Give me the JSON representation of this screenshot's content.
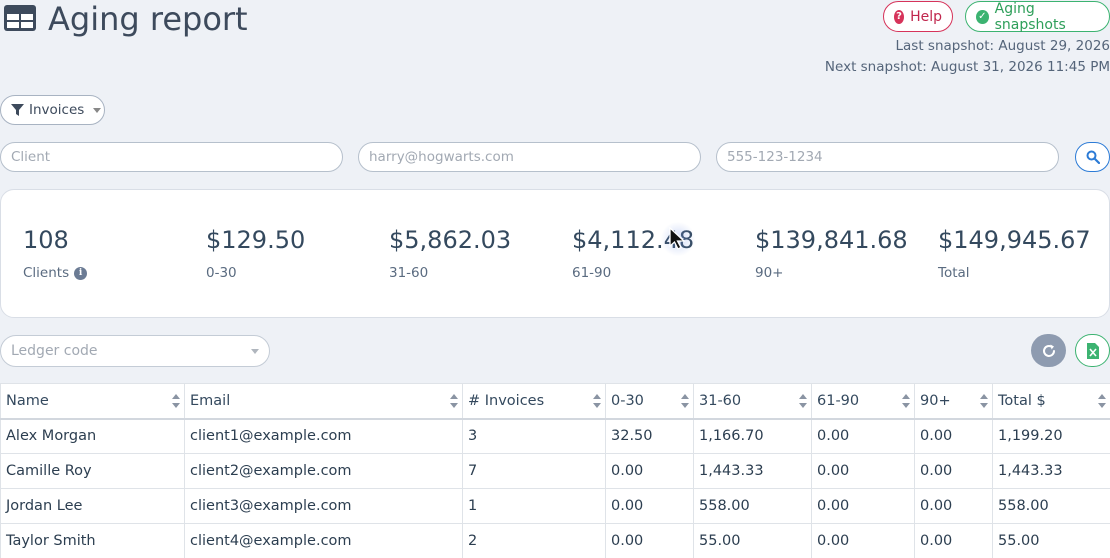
{
  "header": {
    "title": "Aging report",
    "help_label": "Help",
    "snapshots_label": "Aging snapshots",
    "last_snapshot": "Last snapshot: August 29, 2026",
    "next_snapshot": "Next snapshot: August 31, 2026 11:45 PM"
  },
  "filter": {
    "label": "Invoices"
  },
  "search": {
    "client_placeholder": "Client",
    "email_placeholder": "harry@hogwarts.com",
    "phone_placeholder": "555-123-1234"
  },
  "stats": [
    {
      "value": "108",
      "label": "Clients"
    },
    {
      "value": "$129.50",
      "label": "0-30"
    },
    {
      "value": "$5,862.03",
      "label": "31-60"
    },
    {
      "value": "$4,112.48",
      "label": "61-90"
    },
    {
      "value": "$139,841.68",
      "label": "90+"
    },
    {
      "value": "$149,945.67",
      "label": "Total"
    }
  ],
  "ledger": {
    "placeholder": "Ledger code"
  },
  "table": {
    "columns": [
      "Name",
      "Email",
      "# Invoices",
      "0-30",
      "31-60",
      "61-90",
      "90+",
      "Total $"
    ],
    "rows": [
      [
        "Alex Morgan",
        "client1@example.com",
        "3",
        "32.50",
        "1,166.70",
        "0.00",
        "0.00",
        "1,199.20"
      ],
      [
        "Camille Roy",
        "client2@example.com",
        "7",
        "0.00",
        "1,443.33",
        "0.00",
        "0.00",
        "1,443.33"
      ],
      [
        "Jordan Lee",
        "client3@example.com",
        "1",
        "0.00",
        "558.00",
        "0.00",
        "0.00",
        "558.00"
      ],
      [
        "Taylor Smith",
        "client4@example.com",
        "2",
        "0.00",
        "55.00",
        "0.00",
        "0.00",
        "55.00"
      ]
    ]
  },
  "colors": {
    "help": "#d6335a",
    "snapshots": "#3cb371",
    "search": "#2c7bd6"
  }
}
